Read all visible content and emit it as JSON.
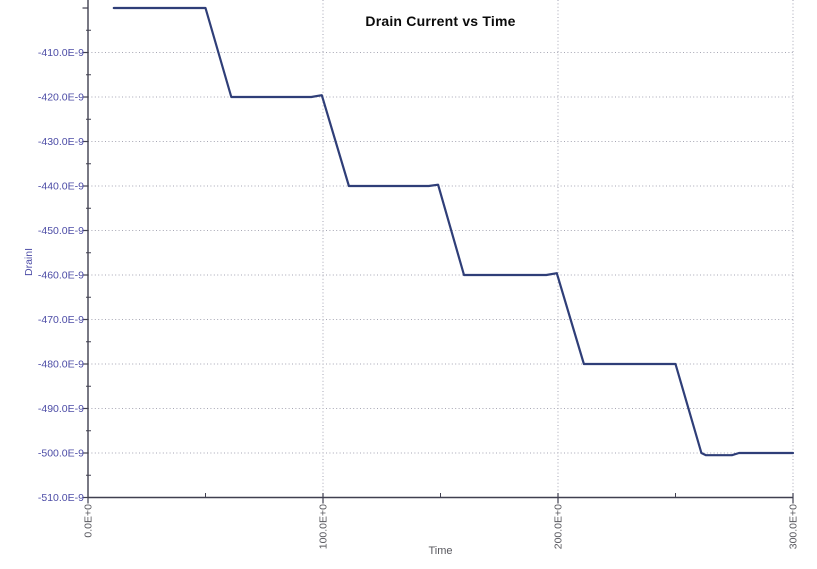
{
  "chart_data": {
    "type": "line",
    "title": "Drain Current vs Time",
    "background": "#ffffff",
    "legend": "none",
    "grid": "dotted",
    "x_axis": {
      "label": "Time",
      "range": [
        0,
        300
      ],
      "tick_label_rotation_deg": -90,
      "major_ticks": [
        {
          "value": 0,
          "label": "0.0E+0",
          "grid": false
        },
        {
          "value": 100,
          "label": "100.0E+0",
          "grid": true
        },
        {
          "value": 200,
          "label": "200.0E+0",
          "grid": true
        },
        {
          "value": 300,
          "label": "300.0E+0",
          "grid": true
        }
      ],
      "minor_ticks": [
        50,
        150,
        250
      ]
    },
    "y_axis": {
      "label": "DrainI",
      "unit": "amps (labels in E-9)",
      "range": [
        -510,
        -398.2
      ],
      "major_ticks": [
        {
          "value": -400,
          "label": "",
          "grid": false
        },
        {
          "value": -410,
          "label": "-410.0E-9",
          "grid": true
        },
        {
          "value": -420,
          "label": "-420.0E-9",
          "grid": true
        },
        {
          "value": -430,
          "label": "-430.0E-9",
          "grid": true
        },
        {
          "value": -440,
          "label": "-440.0E-9",
          "grid": true
        },
        {
          "value": -450,
          "label": "-450.0E-9",
          "grid": true
        },
        {
          "value": -460,
          "label": "-460.0E-9",
          "grid": true
        },
        {
          "value": -470,
          "label": "-470.0E-9",
          "grid": true
        },
        {
          "value": -480,
          "label": "-480.0E-9",
          "grid": true
        },
        {
          "value": -490,
          "label": "-490.0E-9",
          "grid": true
        },
        {
          "value": -500,
          "label": "-500.0E-9",
          "grid": true
        },
        {
          "value": -510,
          "label": "-510.0E-9",
          "grid": false
        }
      ],
      "minor_ticks": [
        -405,
        -415,
        -425,
        -435,
        -445,
        -455,
        -465,
        -475,
        -485,
        -495,
        -505
      ]
    },
    "series": [
      {
        "name": "DrainI",
        "color": "#2f3e78",
        "points_unit": "x: time units, y: current in E-9 A (staircase: -20nA step every 50 units)",
        "points": [
          [
            11,
            -400
          ],
          [
            50,
            -400
          ],
          [
            61,
            -420
          ],
          [
            95,
            -420
          ],
          [
            99.5,
            -419.6
          ],
          [
            111,
            -440
          ],
          [
            145,
            -440
          ],
          [
            149,
            -439.7
          ],
          [
            160,
            -460
          ],
          [
            195,
            -460
          ],
          [
            199.5,
            -459.6
          ],
          [
            211,
            -480
          ],
          [
            250,
            -480
          ],
          [
            261,
            -500
          ],
          [
            263,
            -500.5
          ],
          [
            274,
            -500.5
          ],
          [
            277,
            -500
          ],
          [
            300,
            -500
          ]
        ]
      }
    ],
    "colors": {
      "grid": "#a6a6b4",
      "axis": "#404050",
      "y_text": "#4c4ca6",
      "x_text": "#58585e",
      "title": "#0a0a0a"
    }
  }
}
